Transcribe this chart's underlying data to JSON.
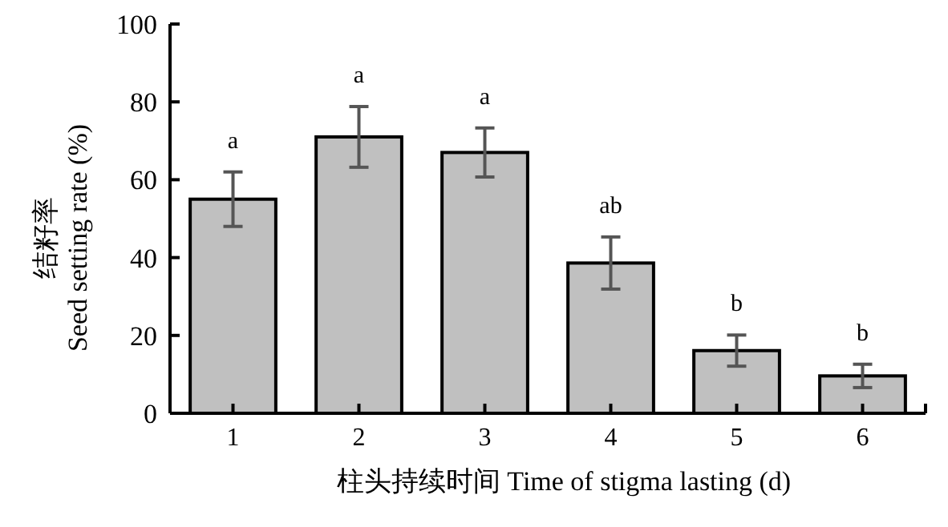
{
  "chart_data": {
    "type": "bar",
    "xlabel": "柱头持续时间 Time of stigma lasting (d)",
    "ylabel": "结籽率\nSeed setting rate (%)",
    "categories": [
      "1",
      "2",
      "3",
      "4",
      "5",
      "6"
    ],
    "values": [
      55.0,
      71.0,
      67.0,
      38.6,
      16.1,
      9.6
    ],
    "errors": [
      7.0,
      7.8,
      6.3,
      6.7,
      4.0,
      3.0
    ],
    "color": "#c0c0c0",
    "ylim": [
      0,
      100
    ],
    "yticks": [
      0,
      20,
      40,
      60,
      80,
      100
    ],
    "annotations": [
      {
        "text": "a",
        "x": "1",
        "y": 62.0
      },
      {
        "text": "a",
        "x": "2",
        "y": 78.8
      },
      {
        "text": "a",
        "x": "3",
        "y": 73.3
      },
      {
        "text": "ab",
        "x": "4",
        "y": 45.3
      },
      {
        "text": "b",
        "x": "5",
        "y": 20.1
      },
      {
        "text": "b",
        "x": "6",
        "y": 12.6
      }
    ]
  }
}
